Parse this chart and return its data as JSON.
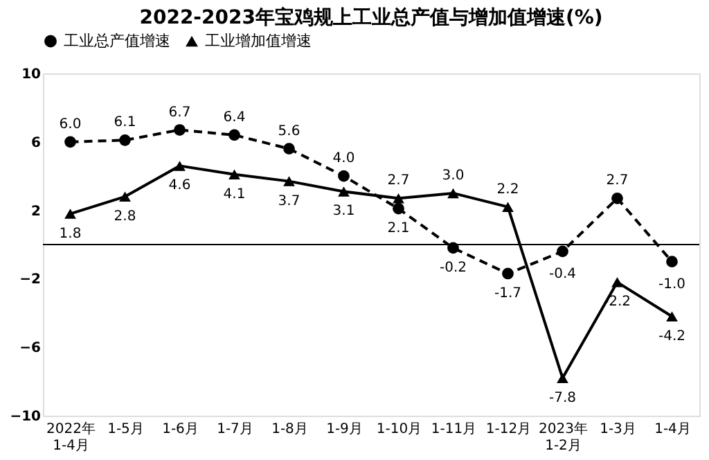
{
  "chart_data": {
    "type": "line",
    "title": "2022-2023年宝鸡规上工业总产值与增加值增速(%)",
    "categories": [
      "2022年\n1-4月",
      "1-5月",
      "1-6月",
      "1-7月",
      "1-8月",
      "1-9月",
      "1-10月",
      "1-11月",
      "1-12月",
      "2023年\n1-2月",
      "1-3月",
      "1-4月"
    ],
    "series": [
      {
        "name": "工业总产值增速",
        "color": "#000000",
        "marker": "circle",
        "line_style": "dashed",
        "value_labels": [
          "6.0",
          "6.1",
          "6.7",
          "6.4",
          "5.6",
          "4.0",
          "2.1",
          "-0.2",
          "-1.7",
          "-0.4",
          "2.7",
          "-1.0"
        ],
        "values": [
          6.0,
          6.1,
          6.7,
          6.4,
          5.6,
          4.0,
          2.1,
          -0.2,
          -1.7,
          -0.4,
          2.7,
          -1.0
        ]
      },
      {
        "name": "工业增加值增速",
        "color": "#000000",
        "marker": "triangle",
        "line_style": "solid",
        "value_labels": [
          "1.8",
          "2.8",
          "4.6",
          "4.1",
          "3.7",
          "3.1",
          "2.7",
          "3.0",
          "2.2",
          "-7.8",
          "-2.2",
          "-4.2"
        ],
        "values": [
          1.8,
          2.8,
          4.6,
          4.1,
          3.7,
          3.1,
          2.7,
          3.0,
          2.2,
          -7.8,
          -2.2,
          -4.2
        ]
      }
    ],
    "ylim": [
      -10,
      10
    ],
    "yticks": [
      -10,
      -6,
      -2,
      2,
      6,
      10
    ],
    "grid": false,
    "legend": "top",
    "data_labels": true,
    "ref_lines": [
      {
        "axis": "y",
        "value": 0,
        "color": "#000000"
      }
    ]
  }
}
